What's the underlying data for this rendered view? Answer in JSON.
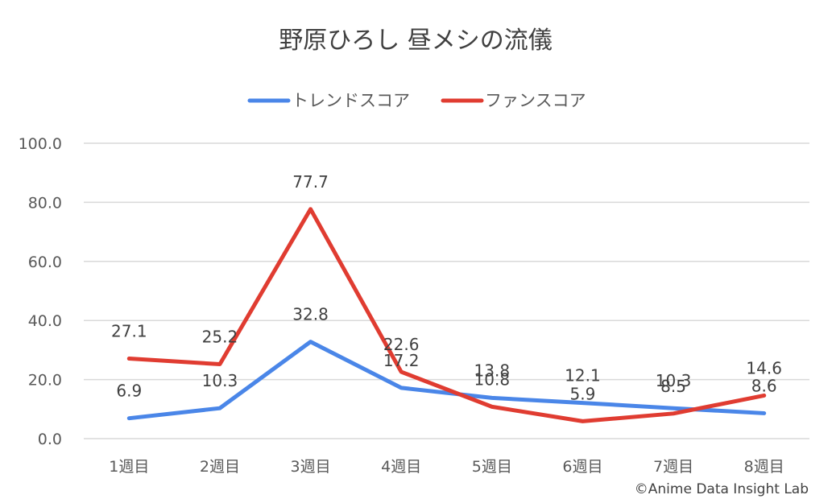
{
  "chart_data": {
    "type": "line",
    "title": "野原ひろし 昼メシの流儀",
    "categories": [
      "1週目",
      "2週目",
      "3週目",
      "4週目",
      "5週目",
      "6週目",
      "7週目",
      "8週目"
    ],
    "series": [
      {
        "name": "トレンドスコア",
        "color": "#4A86E8",
        "values": [
          6.9,
          10.3,
          32.8,
          17.2,
          13.8,
          12.1,
          10.3,
          8.6
        ]
      },
      {
        "name": "ファンスコア",
        "color": "#E03C31",
        "values": [
          27.1,
          25.2,
          77.7,
          22.6,
          10.8,
          5.9,
          8.5,
          14.6
        ]
      }
    ],
    "y_ticks": [
      "0.0",
      "20.0",
      "40.0",
      "60.0",
      "80.0",
      "100.0"
    ],
    "ylim": [
      0,
      100
    ],
    "grid": true,
    "legend_position": "top"
  },
  "credit": "©Anime Data Insight Lab"
}
